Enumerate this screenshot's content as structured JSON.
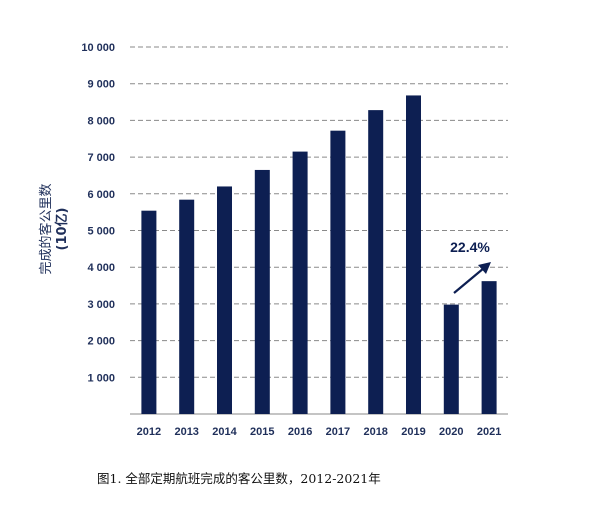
{
  "chart_data": {
    "type": "bar",
    "categories": [
      "2012",
      "2013",
      "2014",
      "2015",
      "2016",
      "2017",
      "2018",
      "2019",
      "2020",
      "2021"
    ],
    "values": [
      5540,
      5840,
      6200,
      6650,
      7150,
      7720,
      8280,
      8680,
      2980,
      3620
    ],
    "ylabel_line1": "完成的客公里数",
    "ylabel_line2": "(10亿)",
    "ylim": [
      0,
      10000
    ],
    "yticks": [
      1000,
      2000,
      3000,
      4000,
      5000,
      6000,
      7000,
      8000,
      9000,
      10000
    ],
    "ytick_labels": [
      "1 000",
      "2 000",
      "3 000",
      "4 000",
      "5 000",
      "6 000",
      "7 000",
      "8 000",
      "9 000",
      "10 000"
    ],
    "grid": true,
    "annotation": "22.4%",
    "bar_color": "#0d1f52",
    "grid_color": "#8a8a8a"
  },
  "caption": "图1. 全部定期航班完成的客公里数，2012-2021年"
}
